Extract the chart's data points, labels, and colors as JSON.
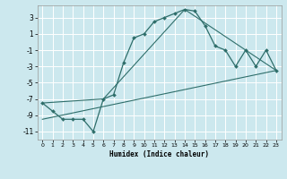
{
  "xlabel": "Humidex (Indice chaleur)",
  "bg_color": "#cce8ee",
  "grid_color": "#ffffff",
  "line_color": "#2e6e6a",
  "xlim": [
    -0.5,
    23.5
  ],
  "ylim": [
    -12,
    4.5
  ],
  "yticks": [
    3,
    1,
    -1,
    -3,
    -5,
    -7,
    -9,
    -11
  ],
  "xticks": [
    0,
    1,
    2,
    3,
    4,
    5,
    6,
    7,
    8,
    9,
    10,
    11,
    12,
    13,
    14,
    15,
    16,
    17,
    18,
    19,
    20,
    21,
    22,
    23
  ],
  "line1_x": [
    0,
    1,
    2,
    3,
    4,
    5,
    6,
    7,
    8,
    9,
    10,
    11,
    12,
    13,
    14,
    15,
    16,
    17,
    18,
    19,
    20,
    21,
    22,
    23
  ],
  "line1_y": [
    -7.5,
    -8.5,
    -9.5,
    -9.5,
    -9.5,
    -11.0,
    -7.0,
    -6.5,
    -2.5,
    0.5,
    1.0,
    2.5,
    3.0,
    3.5,
    4.0,
    3.8,
    2.0,
    -0.5,
    -1.0,
    -3.0,
    -1.0,
    -3.0,
    -1.0,
    -3.5
  ],
  "line2_x": [
    0,
    6,
    14,
    23
  ],
  "line2_y": [
    -7.5,
    -7.0,
    4.0,
    -3.5
  ],
  "line3_x": [
    0,
    23
  ],
  "line3_y": [
    -9.5,
    -3.5
  ]
}
